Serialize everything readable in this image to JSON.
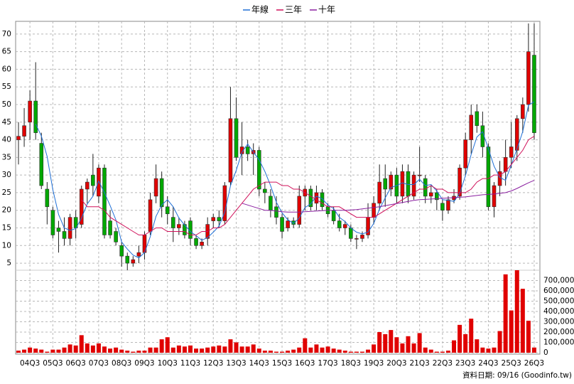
{
  "chart_data": {
    "type": "candlestick",
    "legend_position": "top",
    "categories": [
      null,
      null,
      "04Q3",
      null,
      null,
      null,
      "05Q3",
      null,
      null,
      null,
      "06Q3",
      null,
      null,
      null,
      "07Q3",
      null,
      null,
      null,
      "08Q3",
      null,
      null,
      null,
      "09Q3",
      null,
      null,
      null,
      "10Q3",
      null,
      null,
      null,
      "11Q3",
      null,
      null,
      null,
      "12Q3",
      null,
      null,
      null,
      "13Q3",
      null,
      null,
      null,
      "14Q3",
      null,
      null,
      null,
      "15Q3",
      null,
      null,
      null,
      "16Q3",
      null,
      null,
      null,
      "17Q3",
      null,
      null,
      null,
      "18Q3",
      null,
      null,
      null,
      "19Q3",
      null,
      null,
      null,
      "20Q3",
      null,
      null,
      null,
      "21Q3",
      null,
      null,
      null,
      "22Q3",
      null,
      null,
      null,
      "23Q3",
      null,
      null,
      null,
      "24Q3",
      null,
      null,
      null,
      "25Q3",
      null,
      null,
      null,
      "26Q3"
    ],
    "candles": {
      "up_color": "#e00000",
      "down_color": "#00a800",
      "open": [
        40,
        41,
        45,
        51,
        39,
        26,
        20,
        15,
        14,
        12,
        18,
        16,
        26,
        30,
        24,
        32,
        17,
        14,
        10,
        7,
        5,
        7,
        8,
        14,
        24,
        29,
        21,
        18,
        15,
        16,
        17,
        12,
        10,
        12,
        17,
        18,
        17,
        28,
        46,
        36,
        38,
        36,
        37,
        26,
        24,
        21,
        18,
        15,
        17,
        16,
        24,
        26,
        22,
        25,
        21,
        20,
        17,
        15,
        15,
        12,
        12,
        13,
        18,
        22,
        29,
        26,
        30,
        24,
        31,
        24,
        30,
        29,
        24,
        25,
        22,
        20,
        23,
        24,
        32,
        40,
        48,
        44,
        38,
        21,
        27,
        31,
        35,
        37,
        46,
        50,
        64
      ],
      "high": [
        45,
        49,
        54,
        62,
        42,
        28,
        21,
        17,
        18,
        19,
        20,
        27,
        29,
        36,
        33,
        33,
        20,
        15,
        11,
        8,
        7,
        10,
        14,
        25,
        33,
        31,
        24,
        21,
        18,
        17,
        18,
        13,
        12,
        18,
        19,
        20,
        28,
        55,
        52,
        45,
        40,
        39,
        38,
        28,
        26,
        24,
        19,
        18,
        18,
        27,
        27,
        27,
        27,
        26,
        22,
        21,
        19,
        17,
        16,
        13,
        14,
        22,
        24,
        33,
        33,
        31,
        32,
        33,
        33,
        31,
        38,
        30,
        27,
        26,
        23,
        24,
        26,
        33,
        42,
        50,
        50,
        48,
        39,
        28,
        34,
        40,
        45,
        47,
        52,
        73,
        73
      ],
      "low": [
        33,
        38,
        40,
        40,
        26,
        16,
        12,
        8,
        10,
        10,
        12,
        15,
        22,
        24,
        22,
        12,
        12,
        10,
        4,
        3,
        4,
        5,
        6,
        13,
        22,
        18,
        16,
        11,
        13,
        12,
        10,
        9,
        9,
        10,
        15,
        15,
        16,
        27,
        34,
        30,
        34,
        30,
        24,
        22,
        18,
        16,
        12,
        14,
        15,
        15,
        20,
        20,
        20,
        20,
        18,
        16,
        14,
        13,
        11,
        9,
        11,
        12,
        16,
        20,
        21,
        24,
        22,
        22,
        22,
        23,
        28,
        22,
        22,
        20,
        17,
        19,
        22,
        23,
        30,
        36,
        42,
        35,
        20,
        18,
        24,
        27,
        32,
        34,
        42,
        48,
        40
      ],
      "close": [
        41,
        44,
        51,
        42,
        27,
        21,
        13,
        14,
        12,
        18,
        15,
        26,
        28,
        27,
        32,
        13,
        13,
        11,
        7,
        5,
        6,
        8,
        13,
        23,
        29,
        21,
        19,
        15,
        16,
        13,
        12,
        10,
        11,
        16,
        18,
        17,
        27,
        46,
        35,
        38,
        36,
        37,
        26,
        25,
        20,
        18,
        14,
        17,
        16,
        24,
        26,
        21,
        25,
        21,
        19,
        17,
        15,
        16,
        12,
        12,
        13,
        18,
        22,
        28,
        26,
        30,
        24,
        31,
        24,
        30,
        30,
        24,
        25,
        23,
        20,
        23,
        24,
        32,
        40,
        47,
        44,
        38,
        21,
        27,
        31,
        35,
        38,
        46,
        50,
        65,
        42
      ]
    },
    "series": [
      {
        "name": "年線",
        "color": "#1f6fd6",
        "values": [
          null,
          null,
          null,
          44.5,
          41,
          35.3,
          25.8,
          18.8,
          15,
          14.3,
          14.8,
          17.8,
          21.8,
          24,
          28.3,
          25,
          21.3,
          17.3,
          11,
          9,
          7.3,
          6.5,
          8,
          12.5,
          18.3,
          21.5,
          23,
          21,
          17.8,
          15.8,
          14,
          12.8,
          11.5,
          12.3,
          13.8,
          15.5,
          19.5,
          27,
          31.3,
          36.5,
          38.8,
          36.5,
          34.3,
          31,
          27,
          22.3,
          19.3,
          17.3,
          16.3,
          17.8,
          20.8,
          21.8,
          24,
          23.3,
          21.5,
          20.5,
          18,
          16.8,
          15,
          13.8,
          13.3,
          13.8,
          16.3,
          20.3,
          23.5,
          26.5,
          27,
          27.8,
          27.3,
          27.3,
          28.8,
          27,
          27.3,
          25.5,
          23,
          22.8,
          22.5,
          24.8,
          29.8,
          35.8,
          40.8,
          42.3,
          37.5,
          32.5,
          29.3,
          28.5,
          32.8,
          37.5,
          42.3,
          49.8,
          50.8
        ]
      },
      {
        "name": "三年",
        "color": "#d0105a",
        "values": [
          null,
          null,
          null,
          null,
          null,
          null,
          null,
          null,
          null,
          null,
          null,
          23,
          21,
          21,
          21,
          20,
          18,
          17,
          16,
          15,
          14,
          13,
          13,
          14,
          15,
          15,
          14,
          14,
          14,
          14,
          13,
          13,
          14,
          14,
          15,
          15,
          16,
          18,
          20,
          22,
          24,
          26,
          27,
          28,
          28,
          28,
          27,
          27,
          26,
          26,
          25,
          24,
          23,
          22,
          21,
          21,
          21,
          20,
          19,
          18,
          18,
          18,
          18,
          19,
          20,
          21,
          22,
          23,
          24,
          25,
          26,
          26,
          27,
          26,
          26,
          25,
          25,
          25,
          25,
          26,
          28,
          29,
          29,
          30,
          30,
          31,
          33,
          35,
          37,
          40,
          41
        ]
      },
      {
        "name": "十年",
        "color": "#8a1fa0",
        "values": [
          null,
          null,
          null,
          null,
          null,
          null,
          null,
          null,
          null,
          null,
          null,
          null,
          null,
          null,
          null,
          null,
          null,
          null,
          null,
          null,
          null,
          null,
          null,
          null,
          null,
          null,
          null,
          null,
          null,
          null,
          null,
          null,
          null,
          null,
          null,
          null,
          null,
          null,
          null,
          22,
          21.5,
          21,
          20.5,
          20,
          20,
          19.8,
          19.6,
          19.5,
          19.5,
          19.5,
          19.6,
          19.7,
          19.8,
          19.9,
          20,
          20,
          20,
          20,
          20.1,
          20.2,
          20.4,
          20.6,
          20.8,
          21,
          21.3,
          21.6,
          21.9,
          22.2,
          22.5,
          22.8,
          23,
          23.1,
          23.2,
          23.3,
          23.4,
          23.5,
          23.6,
          23.7,
          23.8,
          24,
          24.2,
          24.4,
          24.5,
          24.6,
          24.8,
          25,
          25.5,
          26.2,
          27,
          27.8,
          28.5
        ]
      }
    ],
    "volume": {
      "axis": "y2",
      "color": "#e00000",
      "values": [
        20000,
        30000,
        50000,
        40000,
        30000,
        10000,
        30000,
        30000,
        50000,
        80000,
        70000,
        170000,
        90000,
        70000,
        90000,
        60000,
        40000,
        50000,
        30000,
        20000,
        10000,
        20000,
        20000,
        50000,
        50000,
        130000,
        150000,
        50000,
        70000,
        60000,
        70000,
        40000,
        40000,
        50000,
        60000,
        70000,
        60000,
        130000,
        100000,
        60000,
        60000,
        80000,
        40000,
        20000,
        20000,
        10000,
        10000,
        20000,
        30000,
        50000,
        140000,
        50000,
        80000,
        50000,
        60000,
        40000,
        30000,
        20000,
        10000,
        10000,
        10000,
        30000,
        80000,
        200000,
        180000,
        220000,
        150000,
        90000,
        160000,
        90000,
        190000,
        50000,
        30000,
        10000,
        10000,
        20000,
        120000,
        270000,
        180000,
        330000,
        130000,
        50000,
        40000,
        50000,
        210000,
        760000,
        410000,
        800000,
        620000,
        310000,
        50000
      ]
    },
    "ylim": [
      3,
      73.6
    ],
    "yticks": [
      5,
      10,
      15,
      20,
      25,
      30,
      35,
      40,
      45,
      50,
      55,
      60,
      65,
      70
    ],
    "y2lim": [
      0,
      800000
    ],
    "y2ticks": [
      0,
      {
        "value": 100000,
        "label": "100,000"
      },
      {
        "value": 200000,
        "label": "200,000"
      },
      {
        "value": 300000,
        "label": "300,000"
      },
      {
        "value": 400000,
        "label": "400,000"
      },
      {
        "value": 500000,
        "label": "500,000"
      },
      {
        "value": 600000,
        "label": "600,000"
      },
      {
        "value": 700000,
        "label": "700,000"
      }
    ],
    "grid": true,
    "source_note": "資料日期: 09/16  (Goodinfo.tw)"
  }
}
